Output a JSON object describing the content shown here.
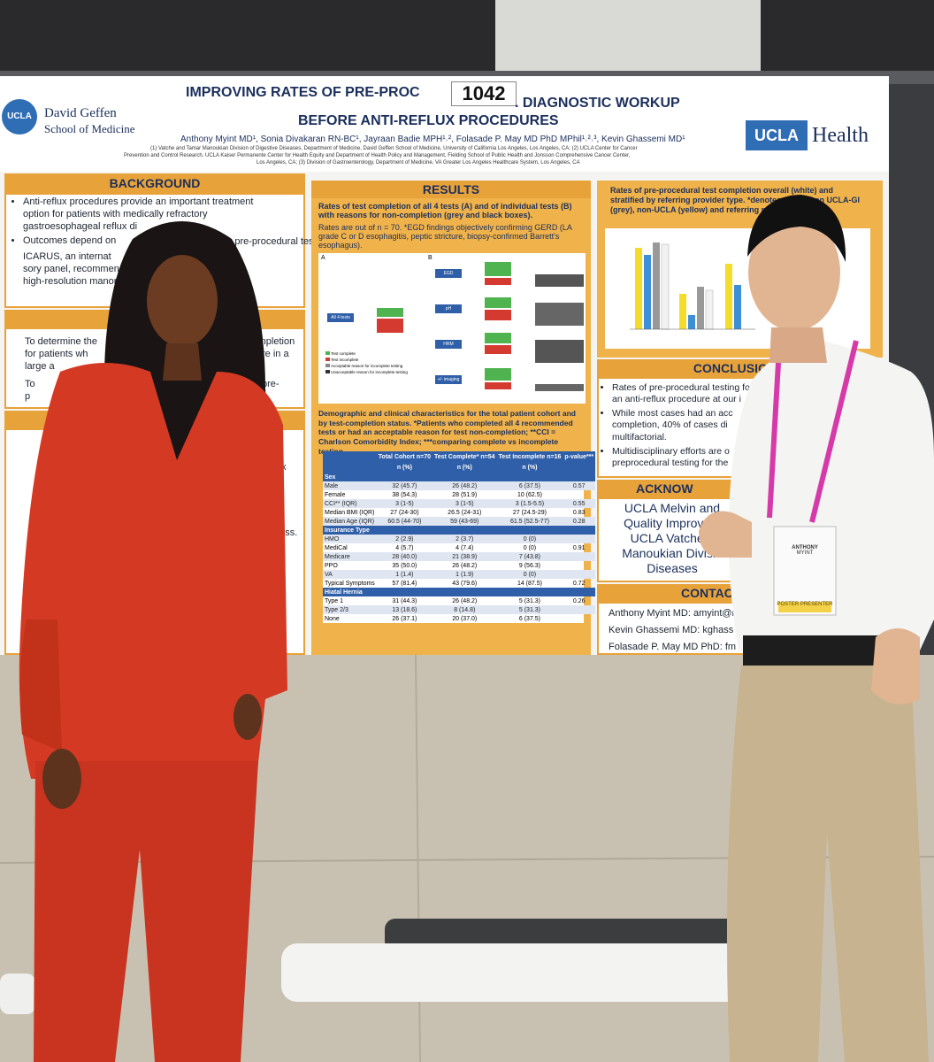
{
  "poster": {
    "title_left": "IMPROVING RATES OF PRE-PROC",
    "board_number": "1042",
    "title_right": ". DIAGNOSTIC WORKUP",
    "title_line2": "BEFORE ANTI-REFLUX PROCEDURES",
    "authors": "Anthony Myint MD¹, Sonia Divakaran RN-BC¹, Jayraan Badie MPH¹˒², Folasade P. May MD PhD MPhil¹˒²˒³, Kevin Ghassemi MD¹",
    "affiliations": [
      "(1) Vatche and Tamar Manoukian Division of Digestive Diseases, Department of Medicine, David Geffen School of Medicine, University of California Los Angeles, Los Angeles, CA; (2) UCLA Center for Cancer",
      "Prevention and Control Research, UCLA Kaiser Permanente Center for Health Equity and Department of Health Policy and Management, Fielding School of Public Health and Jonsson Comprehensive Cancer Center,",
      "Los Angeles, CA; (3) Division of Gastroenterology, Department of Medicine, VA Greater Los Angeles Healthcare System, Los Angeles, CA"
    ],
    "left_logo": {
      "badge": "UCLA",
      "line1": "David Geffen",
      "line2": "School of Medicine"
    },
    "right_logo": {
      "badge": "UCLA",
      "word": "Health"
    },
    "background": {
      "heading": "BACKGROUND",
      "bullets": [
        "Anti-reflux procedures provide an important treatment option for patients with medically refractory gastroesophageal reflux di",
        "Outcomes depend on",
        "through pre-procedural testin",
        "ICARUS, an internat",
        "sory panel, recommends uppe",
        "high-resolution manome"
      ],
      "objective_fragments": [
        "To determine the",
        "completion",
        "for patients wh",
        "re in a",
        "large a",
        "To",
        "pre-",
        "p"
      ],
      "methods_fragments": [
        "ux",
        "r,",
        "pass."
      ]
    },
    "results": {
      "heading": "RESULTS",
      "figure_caption": "Rates of test completion of all 4 tests (A) and of individual tests (B) with reasons for non-completion (grey and black boxes).",
      "figure_note": "Rates are out of n = 70. *EGD findings objectively confirming GERD (LA grade C or D esophagitis, peptic stricture, biopsy-confirmed Barrett's esophagus).",
      "panel_a": "A",
      "panel_b": "B",
      "flow_labels": [
        "All 4 tests",
        "EGD",
        "pH",
        "HRM",
        "+/- imaging"
      ],
      "legend": [
        "Test complete",
        "Test incomplete",
        "Acceptable reason for incomplete testing",
        "Unacceptable reason for incomplete testing"
      ],
      "table_caption": "Demographic and clinical characteristics for the total patient cohort and by test-completion status. *Patients who completed all 4 recommended tests or had an acceptable reason for test non-completion; **CCI = Charlson Comorbidity Index; ***comparing complete vs incomplete testing.",
      "table": {
        "header": [
          "",
          "Total Cohort n=70",
          "Test Complete* n=54",
          "Test Incomplete n=16",
          "p-value***"
        ],
        "subheader": [
          "",
          "n (%)",
          "n (%)",
          "n (%)",
          ""
        ],
        "rows": [
          [
            "Sex",
            "",
            "",
            "",
            ""
          ],
          [
            "Male",
            "32 (45.7)",
            "26 (48.2)",
            "6 (37.5)",
            "0.57"
          ],
          [
            "Female",
            "38 (54.3)",
            "28 (51.9)",
            "10 (62.5)",
            ""
          ],
          [
            "CCI** (IQR)",
            "3 (1-5)",
            "3 (1-5)",
            "3 (1.5-5.5)",
            "0.55"
          ],
          [
            "Median BMI (IQR)",
            "27 (24-30)",
            "26.5 (24-31)",
            "27 (24.5-29)",
            "0.83"
          ],
          [
            "Median Age (IQR)",
            "60.5 (44-70)",
            "59 (43-69)",
            "61.5 (52.5-77)",
            "0.28"
          ],
          [
            "Insurance Type",
            "",
            "",
            "",
            ""
          ],
          [
            "HMO",
            "2 (2.9)",
            "2 (3.7)",
            "0 (0)",
            ""
          ],
          [
            "MediCal",
            "4 (5.7)",
            "4 (7.4)",
            "0 (0)",
            "0.91"
          ],
          [
            "Medicare",
            "28 (40.0)",
            "21 (38.9)",
            "7 (43.8)",
            ""
          ],
          [
            "PPO",
            "35 (50.0)",
            "26 (48.2)",
            "9 (56.3)",
            ""
          ],
          [
            "VA",
            "1 (1.4)",
            "1 (1.9)",
            "0 (0)",
            ""
          ],
          [
            "Typical Symptoms",
            "57 (81.4)",
            "43 (79.6)",
            "14 (87.5)",
            "0.72"
          ],
          [
            "Hiatal Hernia",
            "",
            "",
            "",
            ""
          ],
          [
            "Type 1",
            "31 (44.3)",
            "26 (48.2)",
            "5 (31.3)",
            "0.26"
          ],
          [
            "Type 2/3",
            "13 (18.6)",
            "8 (14.8)",
            "5 (31.3)",
            ""
          ],
          [
            "None",
            "26 (37.1)",
            "20 (37.0)",
            "6 (37.5)",
            ""
          ]
        ]
      }
    },
    "stratified_caption": "Rates of pre-procedural test completion overall (white) and stratified by referring provider type. *denotes st between UCLA-GI (grey), non-UCLA (yellow) and referring providers.",
    "conclusion": {
      "heading": "CONCLUSION",
      "bullets": [
        "Rates of pre-procedural testing fo an anti-reflux procedure at our i",
        "While most cases had an acc completion, 40% of cases di multifactorial.",
        "Multidisciplinary efforts are o preprocedural testing for the"
      ]
    },
    "acknowledgements": {
      "heading": "ACKNOW",
      "lines": [
        "UCLA Melvin and",
        "Quality Improvem",
        "UCLA Vatche a",
        "Manoukian Divisio",
        "Diseases"
      ]
    },
    "contact": {
      "heading": "CONTACT INF",
      "lines": [
        "Anthony Myint MD: amyint@me",
        "Kevin Ghassemi MD: kghass",
        "Folasade P. May MD PhD: fm"
      ]
    }
  },
  "name_badge": {
    "first": "ANTHONY",
    "last": "MYINT",
    "footer": "POSTER PRESENTER"
  }
}
